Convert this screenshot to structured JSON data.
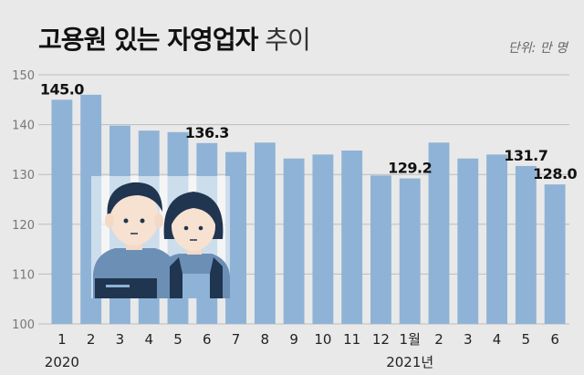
{
  "header": {
    "title_bold": "고용원 있는 자영업자",
    "title_light": "추이",
    "unit": "단위: 만 명"
  },
  "chart_data": {
    "type": "bar",
    "categories": [
      "1",
      "2",
      "3",
      "4",
      "5",
      "6",
      "7",
      "8",
      "9",
      "10",
      "11",
      "12",
      "1월",
      "2",
      "3",
      "4",
      "5",
      "6"
    ],
    "values": [
      145.0,
      146.0,
      139.8,
      138.8,
      138.5,
      136.3,
      134.5,
      136.4,
      133.2,
      134.0,
      134.8,
      129.8,
      129.2,
      136.4,
      133.2,
      134.0,
      131.7,
      128.0
    ],
    "data_labels": [
      {
        "index": 0,
        "text": "145.0"
      },
      {
        "index": 5,
        "text": "136.3"
      },
      {
        "index": 12,
        "text": "129.2"
      },
      {
        "index": 16,
        "text": "131.7"
      },
      {
        "index": 17,
        "text": "128.0"
      }
    ],
    "year_labels": [
      {
        "index": 0,
        "text": "2020"
      },
      {
        "index": 12,
        "text": "2021년"
      }
    ],
    "yticks": [
      100,
      110,
      120,
      130,
      140,
      150
    ],
    "ylim": [
      100,
      150
    ],
    "grid": true,
    "bar_color": "#8fb3d6",
    "grid_color": "#bdbdbd"
  },
  "illustration": {
    "icon": "two-workers-illustration",
    "hair_color": "#1f3550",
    "shirt_color": "#6c8fb5",
    "apron_color": "#1f3550"
  }
}
